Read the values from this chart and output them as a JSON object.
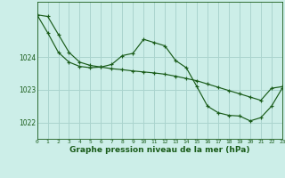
{
  "title": "Graphe pression niveau de la mer (hPa)",
  "background_color": "#cceee8",
  "grid_color": "#aad4ce",
  "line_color": "#1a5c1a",
  "x_values": [
    0,
    1,
    2,
    3,
    4,
    5,
    6,
    7,
    8,
    9,
    10,
    11,
    12,
    13,
    14,
    15,
    16,
    17,
    18,
    19,
    20,
    21,
    22,
    23
  ],
  "line1": [
    1025.3,
    1025.25,
    1024.7,
    1024.15,
    1023.85,
    1023.75,
    1023.7,
    1023.65,
    1023.62,
    1023.58,
    1023.55,
    1023.52,
    1023.48,
    1023.42,
    1023.35,
    1023.28,
    1023.18,
    1023.08,
    1022.98,
    1022.88,
    1022.78,
    1022.68,
    1023.05,
    1023.1
  ],
  "line2": [
    1025.3,
    1024.75,
    1024.15,
    1023.85,
    1023.72,
    1023.68,
    1023.7,
    1023.78,
    1024.05,
    1024.12,
    1024.55,
    1024.45,
    1024.35,
    1023.9,
    1023.68,
    1023.1,
    1022.5,
    1022.3,
    1022.22,
    1022.2,
    1022.05,
    1022.15,
    1022.5,
    1023.05
  ],
  "ylim": [
    1021.5,
    1025.7
  ],
  "yticks": [
    1022,
    1023,
    1024
  ],
  "xlim": [
    0,
    23
  ],
  "title_fontsize": 6.5
}
